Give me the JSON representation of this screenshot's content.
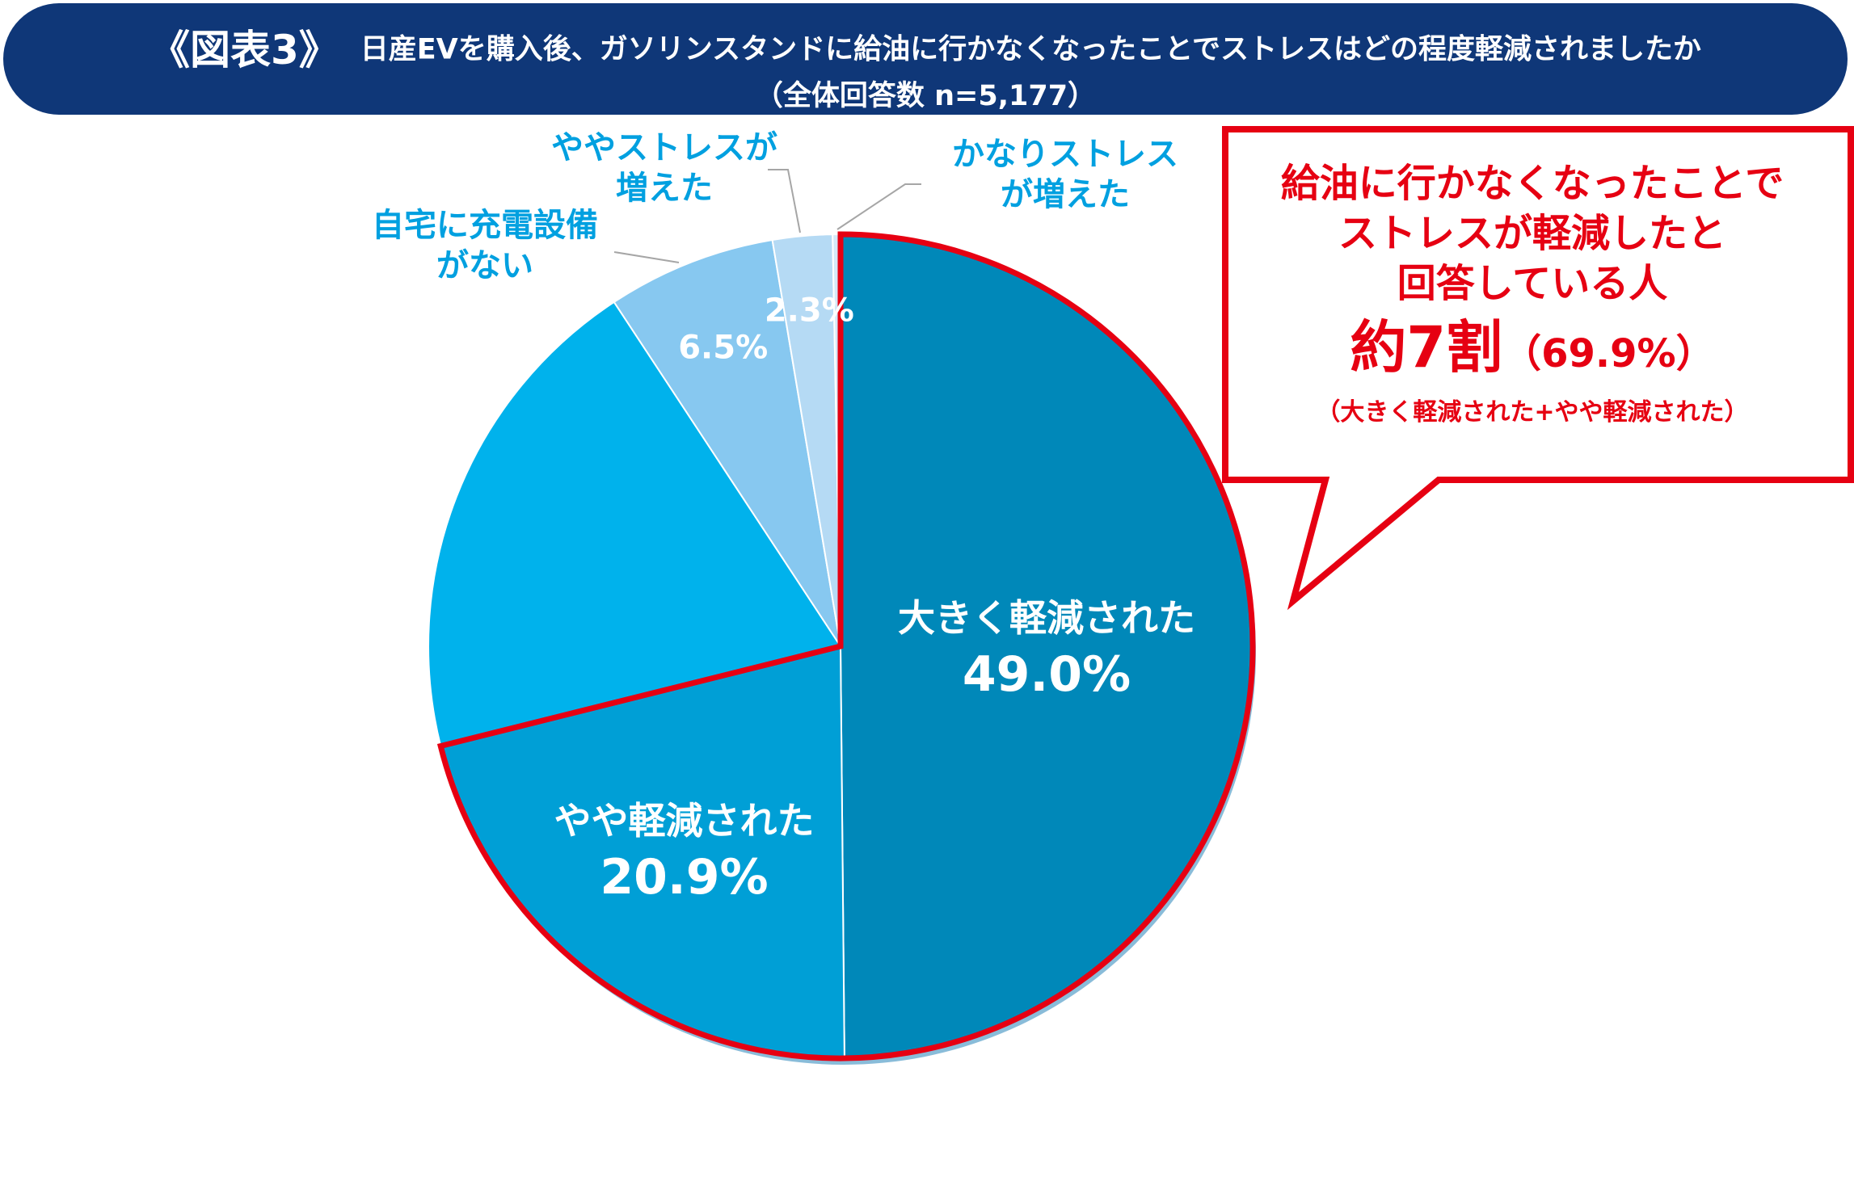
{
  "header": {
    "figure_label": "《図表3》",
    "title": "日産EVを購入後、ガソリンスタンドに給油に行かなくなったことでストレスはどの程度軽減されましたか",
    "subtitle": "（全体回答数 n=5,177）"
  },
  "chart_data": {
    "type": "pie",
    "title": "日産EVを購入後、ガソリンスタンドに給油に行かなくなったことでストレスはどの程度軽減されましたか",
    "subtitle": "（全体回答数 n=5,177）",
    "start": "12 o'clock, clockwise",
    "slices": [
      {
        "label": "大きく軽減された",
        "value": 49.0,
        "value_label": "49.0%",
        "color": "#0088b9"
      },
      {
        "label": "やや軽減された",
        "value": 20.9,
        "value_label": "20.9%",
        "color": "#009fd6"
      },
      {
        "label": "",
        "value": 19.3,
        "value_label": "",
        "color": "#00b2ec"
      },
      {
        "label": "自宅に充電設備がない",
        "value": 6.5,
        "value_label": "6.5%",
        "color": "#87c8f0"
      },
      {
        "label": "ややストレスが増えた",
        "value": 2.3,
        "value_label": "2.3%",
        "color": "#b5daf4"
      },
      {
        "label": "かなりストレスが増えた",
        "value": 0.3,
        "value_label": "",
        "color": "#d4e9f8"
      }
    ],
    "highlighted_slices": [
      "大きく軽減された",
      "やや軽減された"
    ],
    "outside_labels": [
      {
        "lines": [
          "自宅に充電設備",
          "がない"
        ],
        "color": "#00a0e0"
      },
      {
        "lines": [
          "ややストレスが",
          "増えた"
        ],
        "color": "#00a0e0"
      },
      {
        "lines": [
          "かなりストレス",
          "が増えた"
        ],
        "color": "#00a0e0"
      }
    ]
  },
  "callout": {
    "line1": "給油に行かなくなったことで",
    "line2": "ストレスが軽減したと",
    "line3": "回答している人",
    "big": "約7割",
    "paren": "（69.9%）",
    "note": "（大きく軽減された+やや軽減された）",
    "color": "#e60012"
  },
  "colors": {
    "header_bg": "#0f3778",
    "highlight": "#e60012",
    "leader_line": "#a6a6a6"
  }
}
